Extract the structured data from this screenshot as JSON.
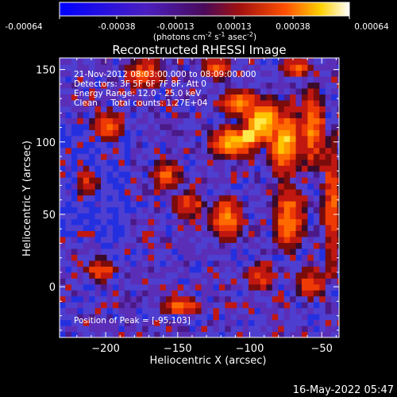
{
  "chart_data": {
    "type": "heatmap",
    "title": "Reconstructed RHESSI Image",
    "xlabel": "Heliocentric X (arcsec)",
    "ylabel": "Heliocentric Y (arcsec)",
    "xlim": [
      -232,
      -38
    ],
    "ylim": [
      -35,
      158
    ],
    "x_ticks": [
      -200,
      -150,
      -100,
      -50
    ],
    "y_ticks": [
      0,
      50,
      100,
      150
    ],
    "colorbar": {
      "ticks": [
        "-0.00064",
        "-0.00038",
        "-0.00013",
        "0.00013",
        "0.00038",
        "0.00064"
      ],
      "unit_base": "(photons cm",
      "unit_exp1": "-2",
      "unit_mid": " s",
      "unit_exp2": "-1",
      "unit_mid2": " asec",
      "unit_exp3": "-2",
      "unit_end": ")"
    },
    "info_lines": [
      "21-Nov-2012 08:03:00.000 to 08:09:00.000",
      "Detectors: 3F 5F 6F 7F 8F, Att 0",
      "Energy Range: 12.0 - 25.0 keV",
      "Clean     Total counts: 1.27E+04"
    ],
    "peak_label": "Position of Peak = [-95,103]",
    "peak": [
      -95,
      103
    ]
  },
  "footer": {
    "timestamp": "16-May-2022 05:47"
  }
}
